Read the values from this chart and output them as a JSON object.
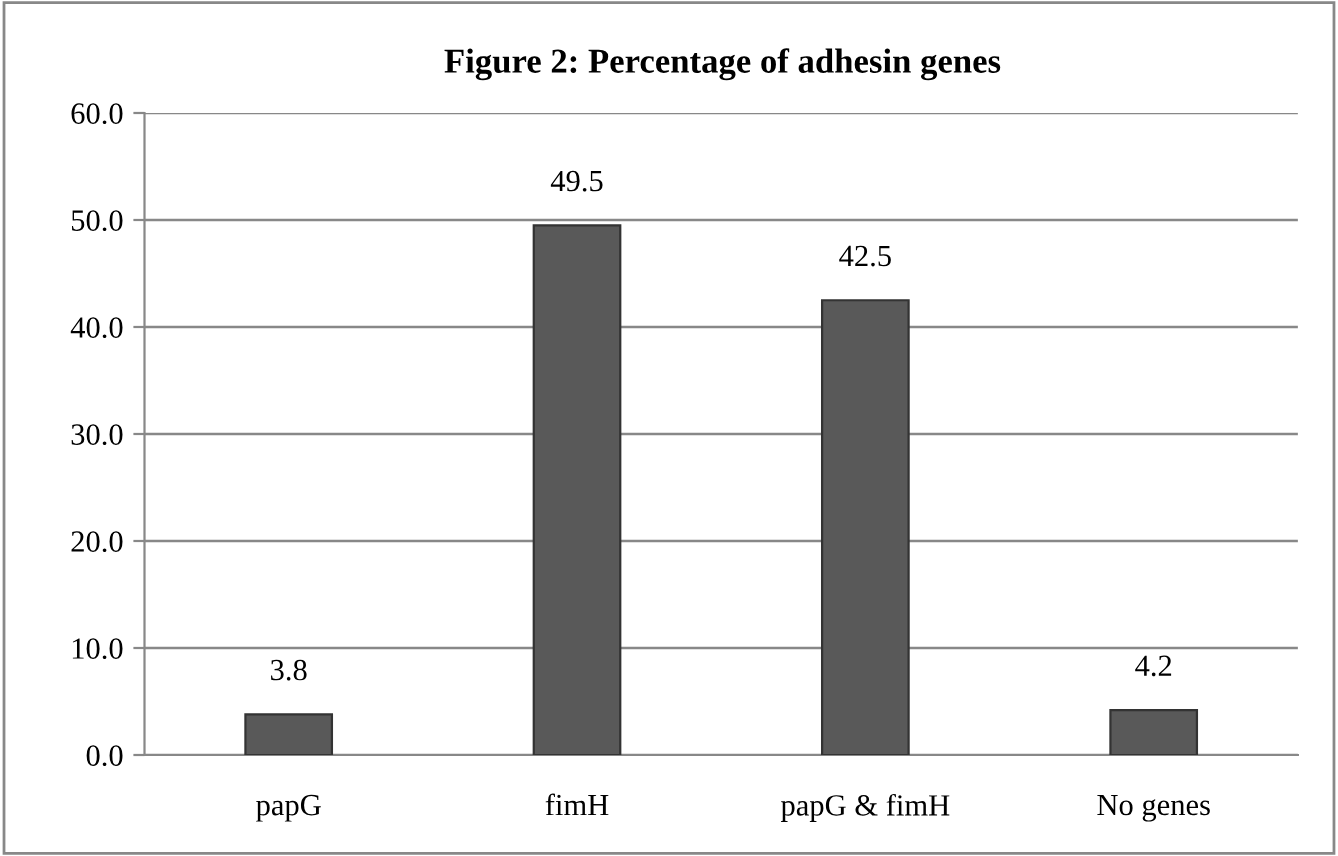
{
  "chart_data": {
    "type": "bar",
    "title": "Figure 2: Percentage of adhesin genes",
    "categories": [
      "papG",
      "fimH",
      "papG & fimH",
      "No genes"
    ],
    "values": [
      3.8,
      49.5,
      42.5,
      4.2
    ],
    "color": "#595959",
    "ylim": [
      0,
      60
    ],
    "yticks": [
      {
        "value": 0,
        "label": "0.0"
      },
      {
        "value": 10,
        "label": "10.0"
      },
      {
        "value": 20,
        "label": "20.0"
      },
      {
        "value": 30,
        "label": "30.0"
      },
      {
        "value": 40,
        "label": "40.0"
      },
      {
        "value": 50,
        "label": "50.0"
      },
      {
        "value": 60,
        "label": "60.0"
      }
    ],
    "grid": "y",
    "data_labels": true
  }
}
